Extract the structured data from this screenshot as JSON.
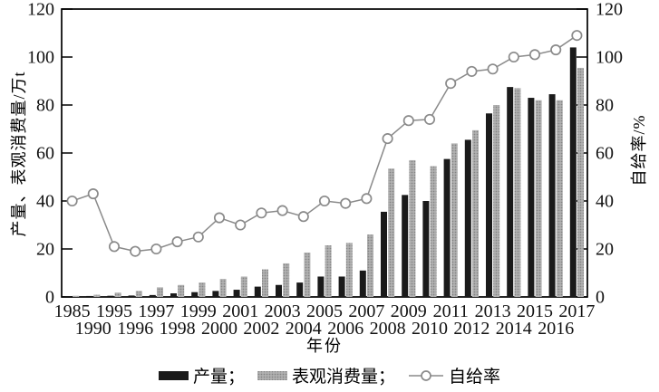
{
  "axes": {
    "left_title": "产量、表观消费量/万t",
    "right_title": "自给率/%",
    "x_title": "年份"
  },
  "legend": {
    "production_label": "产量；",
    "consumption_label": "表观消费量；",
    "self_sufficiency_label": "自给率"
  },
  "colors": {
    "production_bar": "#1a1a1a",
    "consumption_bar_base": "#b2b2b2",
    "consumption_bar_dot": "#848484",
    "line": "#8a8a8a",
    "marker_fill": "#ffffff",
    "axis": "#000000"
  },
  "chart_data": {
    "type": "bar+line",
    "categories": [
      1985,
      1990,
      1995,
      1996,
      1997,
      1998,
      1999,
      2000,
      2001,
      2002,
      2003,
      2004,
      2005,
      2006,
      2007,
      2008,
      2009,
      2010,
      2011,
      2012,
      2013,
      2014,
      2015,
      2016,
      2017
    ],
    "x_tick_rows": "staggered: even indices on upper row, odd indices on lower row",
    "series": [
      {
        "name": "产量",
        "type": "bar",
        "axis": "left",
        "values": [
          0.3,
          0.4,
          0.5,
          0.6,
          0.8,
          1.5,
          2,
          2.5,
          3,
          4.3,
          5,
          6,
          8.5,
          8.5,
          11,
          35.5,
          42.5,
          40,
          57.5,
          65.5,
          76.5,
          87.5,
          83,
          84.5,
          104
        ]
      },
      {
        "name": "表观消费量",
        "type": "bar",
        "axis": "left",
        "values": [
          0.5,
          0.9,
          1.8,
          2.5,
          4,
          5,
          6,
          7.5,
          8.5,
          11.5,
          14,
          18.5,
          21.5,
          22.5,
          26,
          53.5,
          57,
          54.5,
          64,
          69.5,
          80,
          87,
          82,
          82,
          95.5
        ]
      },
      {
        "name": "自给率",
        "type": "line",
        "axis": "right",
        "marker": "open-circle",
        "values": [
          40,
          43,
          21,
          19,
          20,
          23,
          25,
          33,
          30,
          35,
          36,
          33.5,
          40,
          39,
          41,
          66,
          73.5,
          74,
          89,
          94,
          95,
          100,
          101,
          103,
          109
        ]
      }
    ],
    "ylabel_left": "产量、表观消费量/万t",
    "ylabel_right": "自给率/%",
    "xlabel": "年份",
    "y_ticks": [
      0,
      20,
      40,
      60,
      80,
      100,
      120
    ],
    "ylim_left": [
      0,
      120
    ],
    "ylim_right": [
      0,
      120
    ],
    "grid": false,
    "legend_position": "bottom"
  }
}
